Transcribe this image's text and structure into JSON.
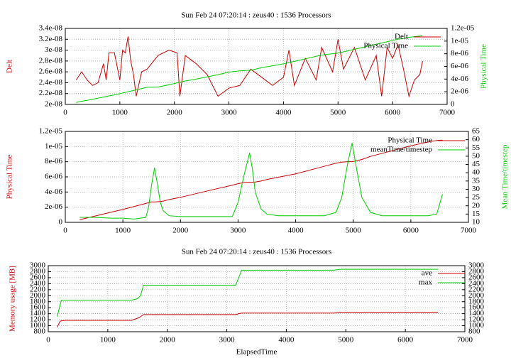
{
  "chart_data": [
    {
      "type": "line",
      "title": "Sun Feb 24 07:20:14 : zeus40 : 1536 Processors",
      "ylabel": "Delt",
      "y2label": "Physical Time",
      "xlim": [
        0,
        7000
      ],
      "xticks": [
        0,
        1000,
        2000,
        3000,
        4000,
        5000,
        6000,
        7000
      ],
      "ylim": [
        2e-08,
        3.4e-08
      ],
      "yticks": [
        {
          "value": 2e-08,
          "label": "2e-08"
        },
        {
          "value": 2.2e-08,
          "label": "2.2e-08"
        },
        {
          "value": 2.4e-08,
          "label": "2.4e-08"
        },
        {
          "value": 2.6e-08,
          "label": "2.6e-08"
        },
        {
          "value": 2.8e-08,
          "label": "2.8e-08"
        },
        {
          "value": 3e-08,
          "label": "3e-08"
        },
        {
          "value": 3.2e-08,
          "label": "3.2e-08"
        },
        {
          "value": 3.4e-08,
          "label": "3.4e-08"
        }
      ],
      "y2lim": [
        0,
        1.2e-05
      ],
      "y2ticks": [
        0,
        {
          "value": 2e-06,
          "label": "2e-06"
        },
        {
          "value": 4e-06,
          "label": "4e-06"
        },
        {
          "value": 6e-06,
          "label": "6e-06"
        },
        {
          "value": 8e-06,
          "label": "8e-06"
        },
        {
          "value": 1e-05,
          "label": "1e-05"
        },
        {
          "value": 1.2e-05,
          "label": "1.2e-05"
        }
      ],
      "grid": true,
      "legend": "top-right",
      "x": [
        200,
        300,
        400,
        500,
        600,
        700,
        750,
        800,
        900,
        1000,
        1050,
        1100,
        1150,
        1200,
        1250,
        1300,
        1400,
        1500,
        1700,
        1900,
        2050,
        2100,
        2200,
        2400,
        2600,
        2800,
        3000,
        3200,
        3400,
        3600,
        3800,
        4000,
        4100,
        4200,
        4400,
        4600,
        4700,
        4900,
        5000,
        5100,
        5300,
        5500,
        5700,
        5800,
        5900,
        6000,
        6100,
        6200,
        6300,
        6400,
        6500,
        6550
      ],
      "series": [
        {
          "name": "Delt",
          "color": "#cc0000",
          "values": [
            2.45e-08,
            2.6e-08,
            2.45e-08,
            2.35e-08,
            2.4e-08,
            2.75e-08,
            2.45e-08,
            2.95e-08,
            2.95e-08,
            2.45e-08,
            3e-08,
            2.95e-08,
            3.25e-08,
            2.8e-08,
            2.55e-08,
            2.15e-08,
            2.6e-08,
            2.65e-08,
            2.9e-08,
            3e-08,
            2.95e-08,
            2.15e-08,
            2.9e-08,
            2.75e-08,
            2.55e-08,
            2.15e-08,
            2.3e-08,
            2.35e-08,
            2.65e-08,
            2.5e-08,
            2.35e-08,
            2.5e-08,
            3e-08,
            2.35e-08,
            2.85e-08,
            2.45e-08,
            3.05e-08,
            2.6e-08,
            3.2e-08,
            2.65e-08,
            3.05e-08,
            2.45e-08,
            2.9e-08,
            2.15e-08,
            3.05e-08,
            2.85e-08,
            3.1e-08,
            2.65e-08,
            2.15e-08,
            2.45e-08,
            2.55e-08,
            2.8e-08
          ]
        },
        {
          "name": "Physical Time",
          "color": "#00cc00",
          "axis": "y2",
          "values": [
            3e-07,
            5e-07,
            6.5e-07,
            8e-07,
            1e-06,
            1.15e-06,
            1.25e-06,
            1.35e-06,
            1.5e-06,
            1.7e-06,
            1.8e-06,
            1.9e-06,
            2e-06,
            2.1e-06,
            2.2e-06,
            2.3e-06,
            2.5e-06,
            2.7e-06,
            2.75e-06,
            3.1e-06,
            3.4e-06,
            3.5e-06,
            3.7e-06,
            4e-06,
            4.35e-06,
            4.7e-06,
            5.1e-06,
            5.3e-06,
            5.4e-06,
            5.8e-06,
            6.1e-06,
            6.4e-06,
            6.6e-06,
            6.8e-06,
            7.2e-06,
            7.6e-06,
            7.8e-06,
            8e-06,
            8.1e-06,
            8.3e-06,
            8.7e-06,
            9.1e-06,
            9.5e-06,
            9.7e-06,
            9.9e-06,
            1.01e-05,
            1.03e-05,
            1.04e-05,
            1.06e-05,
            1.07e-05,
            1.08e-05,
            1.085e-05
          ]
        }
      ]
    },
    {
      "type": "line",
      "ylabel": "Physical Time",
      "y2label": "Mean Time/timestep",
      "xlim": [
        0,
        7000
      ],
      "xticks": [
        0,
        1000,
        2000,
        3000,
        4000,
        5000,
        6000,
        7000
      ],
      "ylim": [
        0,
        1.2e-05
      ],
      "yticks": [
        0,
        {
          "value": 2e-06,
          "label": "2e-06"
        },
        {
          "value": 4e-06,
          "label": "4e-06"
        },
        {
          "value": 6e-06,
          "label": "6e-06"
        },
        {
          "value": 8e-06,
          "label": "8e-06"
        },
        {
          "value": 1e-05,
          "label": "1e-05"
        },
        {
          "value": 1.2e-05,
          "label": "1.2e-05"
        }
      ],
      "y2lim": [
        10,
        65
      ],
      "y2ticks": [
        10,
        15,
        20,
        25,
        30,
        35,
        40,
        45,
        50,
        55,
        60,
        65
      ],
      "grid": true,
      "legend": "top-right",
      "x": [
        250,
        500,
        800,
        1000,
        1200,
        1400,
        1450,
        1500,
        1550,
        1600,
        1650,
        1700,
        1800,
        2000,
        2500,
        2900,
        3000,
        3100,
        3200,
        3250,
        3300,
        3400,
        3500,
        3700,
        4000,
        4500,
        4700,
        4800,
        4900,
        4980,
        5050,
        5150,
        5300,
        5500,
        6000,
        6300,
        6450,
        6550
      ],
      "series": [
        {
          "name": "Physical Time",
          "color": "#cc0000",
          "values": [
            3.5e-07,
            8e-07,
            1.35e-06,
            1.7e-06,
            2.1e-06,
            2.5e-06,
            2.6e-06,
            2.7e-06,
            2.7e-06,
            2.72e-06,
            2.75e-06,
            2.8e-06,
            3e-06,
            3.3e-06,
            4.2e-06,
            4.9e-06,
            5.1e-06,
            5.25e-06,
            5.3e-06,
            5.3e-06,
            5.32e-06,
            5.45e-06,
            5.65e-06,
            5.95e-06,
            6.4e-06,
            7.4e-06,
            7.8e-06,
            7.95e-06,
            8e-06,
            8e-06,
            8.1e-06,
            8.3e-06,
            8.7e-06,
            9.1e-06,
            1.01e-05,
            1.06e-05,
            1.08e-05,
            1.085e-05
          ]
        },
        {
          "name": "meanTime/timestep",
          "color": "#00cc00",
          "axis": "y2",
          "values": [
            13,
            13,
            12.5,
            12.5,
            12,
            13,
            20,
            33,
            43,
            33,
            22,
            17,
            14,
            13.5,
            13.5,
            13.5,
            22,
            38,
            52,
            42,
            28,
            18,
            15,
            14,
            14,
            14,
            16,
            25,
            45,
            58,
            44,
            25,
            16,
            14,
            14,
            14,
            15,
            27
          ]
        }
      ]
    },
    {
      "type": "line",
      "title": "Sun Feb 24 07:20:14 : zeus40 : 1536 Processors",
      "xlabel": "ElapsedTime",
      "ylabel": "Memory usage [MB]",
      "xlim": [
        0,
        7000
      ],
      "xticks": [
        0,
        1000,
        2000,
        3000,
        4000,
        5000,
        6000,
        7000
      ],
      "ylim": [
        800,
        3000
      ],
      "yticks": [
        800,
        1000,
        1200,
        1400,
        1600,
        1800,
        2000,
        2200,
        2400,
        2600,
        2800,
        3000
      ],
      "y2lim": [
        800,
        3000
      ],
      "y2ticks": [
        800,
        1000,
        1200,
        1400,
        1600,
        1800,
        2000,
        2200,
        2400,
        2600,
        2800,
        3000
      ],
      "grid": true,
      "legend": "top-right",
      "x": [
        150,
        200,
        220,
        300,
        1400,
        1500,
        1550,
        1600,
        3150,
        3200,
        3250,
        4800,
        4900,
        6550
      ],
      "series": [
        {
          "name": "ave",
          "color": "#cc0000",
          "values": [
            950,
            1150,
            1160,
            1180,
            1180,
            1250,
            1300,
            1370,
            1370,
            1400,
            1420,
            1420,
            1450,
            1450
          ]
        },
        {
          "name": "max",
          "color": "#00cc00",
          "values": [
            1300,
            1700,
            1850,
            1850,
            1850,
            1900,
            2000,
            2350,
            2350,
            2600,
            2850,
            2850,
            2880,
            2880
          ]
        }
      ]
    }
  ]
}
